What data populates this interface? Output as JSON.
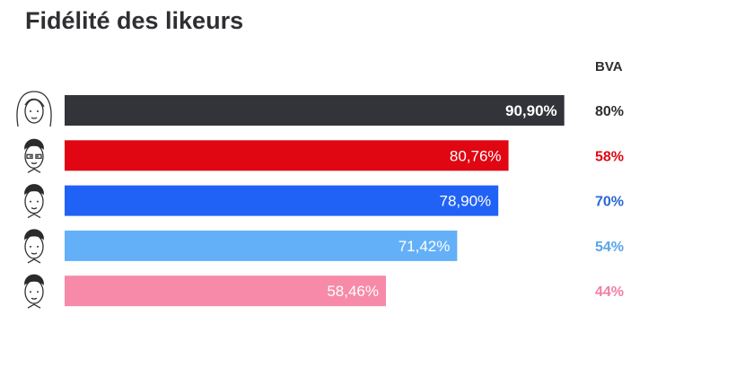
{
  "title": "Fidélité des likeurs",
  "column_header": "BVA",
  "chart_data": {
    "type": "bar",
    "orientation": "horizontal",
    "title": "Fidélité des likeurs",
    "xlim": [
      0,
      100
    ],
    "series": [
      {
        "values": [
          90.9,
          80.76,
          78.9,
          71.42,
          58.46
        ],
        "labels": [
          "90,90%",
          "80,76%",
          "78,90%",
          "71,42%",
          "58,46%"
        ]
      },
      {
        "name": "BVA",
        "values": [
          80,
          58,
          70,
          54,
          44
        ],
        "labels": [
          "80%",
          "58%",
          "70%",
          "54%",
          "44%"
        ]
      }
    ],
    "colors": [
      "#33343a",
      "#e00612",
      "#2162f6",
      "#63b0f8",
      "#f78aa9"
    ],
    "side_label_colors": [
      "#2f2f33",
      "#e00612",
      "#2a67d6",
      "#5aa4e8",
      "#f07fa4"
    ],
    "icons": [
      "portrait-woman-icon",
      "portrait-man-glasses-icon",
      "portrait-man-icon",
      "portrait-man-icon",
      "portrait-man-icon"
    ]
  }
}
